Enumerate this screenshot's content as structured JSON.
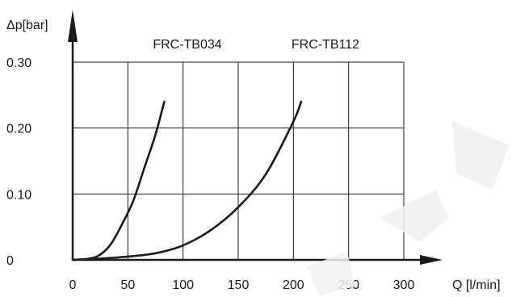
{
  "chart_data": {
    "type": "line",
    "xlabel": "Q [l/min]",
    "ylabel": "Δp[bar]",
    "xlim": [
      0,
      300
    ],
    "ylim": [
      0,
      0.3
    ],
    "xticks": [
      0,
      50,
      100,
      150,
      200,
      250,
      300
    ],
    "xtick_labels": [
      "0",
      "50",
      "100",
      "150",
      "200",
      "250",
      "300"
    ],
    "yticks": [
      0,
      0.1,
      0.2,
      0.3
    ],
    "ytick_labels": [
      "0",
      "0.10",
      "0.20",
      "0.30"
    ],
    "grid": true,
    "series": [
      {
        "name": "FRC-TB034",
        "x": [
          0,
          15,
          25,
          35,
          45,
          55,
          65,
          75,
          83
        ],
        "y": [
          0,
          0.002,
          0.008,
          0.025,
          0.055,
          0.09,
          0.14,
          0.19,
          0.24
        ]
      },
      {
        "name": "FRC-TB112",
        "x": [
          0,
          25,
          50,
          75,
          100,
          125,
          150,
          175,
          200,
          207
        ],
        "y": [
          0,
          0.002,
          0.005,
          0.01,
          0.022,
          0.045,
          0.08,
          0.13,
          0.21,
          0.24
        ]
      }
    ],
    "series_colors": [
      "#1a1a1a",
      "#1a1a1a"
    ]
  }
}
